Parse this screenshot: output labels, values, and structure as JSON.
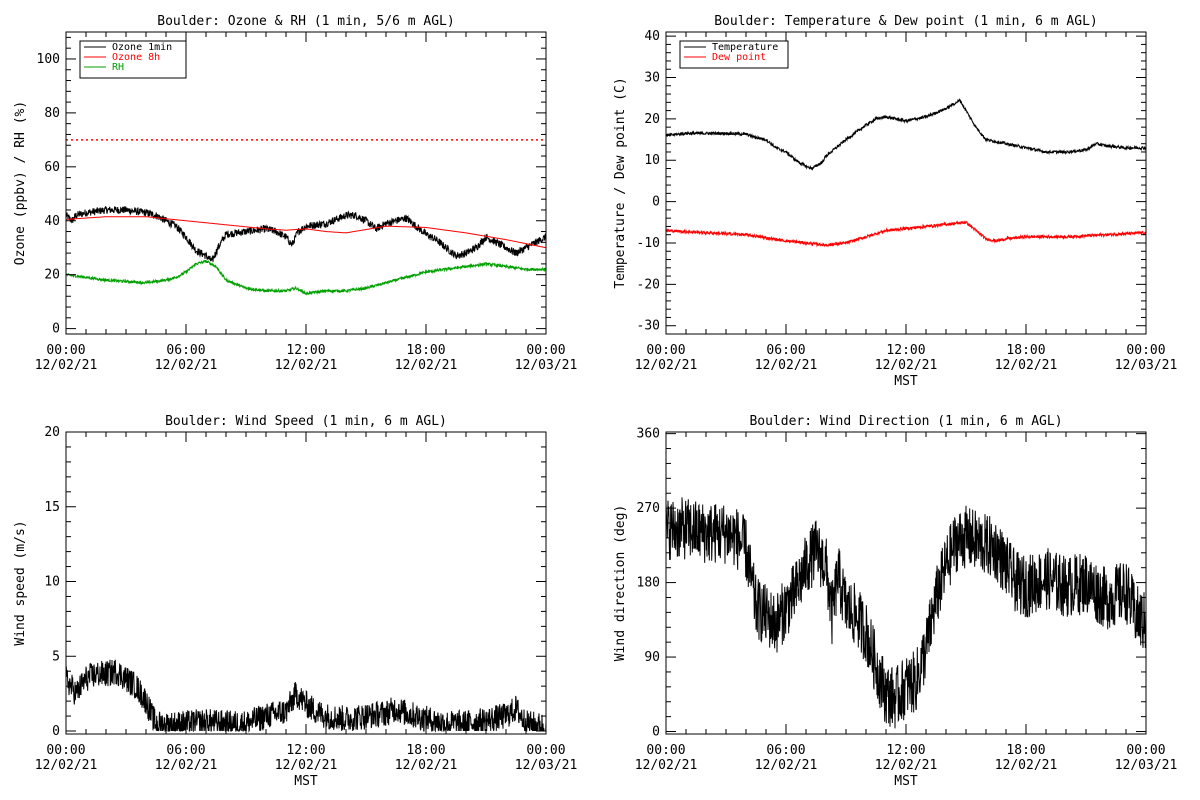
{
  "chart_data": [
    {
      "type": "line",
      "title": "Boulder: Ozone & RH (1 min, 5/6 m AGL)",
      "xlabel": "",
      "ylabel": "Ozone (ppbv) / RH (%)",
      "xlim": [
        0,
        24
      ],
      "ylim": [
        -2,
        110
      ],
      "yticks": [
        0,
        20,
        40,
        60,
        80,
        100
      ],
      "xticks": [
        {
          "t": 0,
          "time": "00:00",
          "date": "12/02/21"
        },
        {
          "t": 6,
          "time": "06:00",
          "date": "12/02/21"
        },
        {
          "t": 12,
          "time": "12:00",
          "date": "12/02/21"
        },
        {
          "t": 18,
          "time": "18:00",
          "date": "12/02/21"
        },
        {
          "t": 24,
          "time": "00:00",
          "date": "12/03/21"
        }
      ],
      "legend_position": "top-left",
      "reference_line": {
        "y": 70,
        "color": "#ff0000",
        "style": "dotted"
      },
      "series": [
        {
          "name": "Ozone 1min",
          "color": "#000000",
          "noise": 1.4,
          "points": [
            [
              0,
              42
            ],
            [
              0.3,
              40
            ],
            [
              0.5,
              42
            ],
            [
              1,
              43
            ],
            [
              2,
              44
            ],
            [
              3,
              44
            ],
            [
              4,
              43
            ],
            [
              4.5,
              42
            ],
            [
              5,
              40
            ],
            [
              5.5,
              38
            ],
            [
              6,
              34
            ],
            [
              6.5,
              29
            ],
            [
              7,
              27
            ],
            [
              7.3,
              25
            ],
            [
              7.6,
              30
            ],
            [
              8,
              35
            ],
            [
              9,
              36
            ],
            [
              10,
              37
            ],
            [
              10.5,
              36
            ],
            [
              11,
              34
            ],
            [
              11.3,
              31
            ],
            [
              11.6,
              36
            ],
            [
              12,
              38
            ],
            [
              13,
              39
            ],
            [
              14,
              42
            ],
            [
              14.5,
              42
            ],
            [
              15,
              40
            ],
            [
              15.5,
              37
            ],
            [
              16,
              39
            ],
            [
              17,
              41
            ],
            [
              17.5,
              38
            ],
            [
              18,
              35
            ],
            [
              18.5,
              33
            ],
            [
              19,
              30
            ],
            [
              19.5,
              27
            ],
            [
              20,
              28
            ],
            [
              20.5,
              30
            ],
            [
              21,
              34
            ],
            [
              22,
              30
            ],
            [
              22.5,
              28
            ],
            [
              23,
              30
            ],
            [
              23.5,
              32
            ],
            [
              24,
              34
            ]
          ]
        },
        {
          "name": "Ozone 8h",
          "color": "#ff0000",
          "noise": 0,
          "points": [
            [
              0,
              40.5
            ],
            [
              2,
              41.5
            ],
            [
              4,
              41.5
            ],
            [
              6,
              40
            ],
            [
              8,
              38.5
            ],
            [
              10,
              37
            ],
            [
              11,
              36.5
            ],
            [
              12,
              37
            ],
            [
              13,
              36
            ],
            [
              14,
              35.5
            ],
            [
              16,
              38
            ],
            [
              18,
              37.5
            ],
            [
              20,
              35.5
            ],
            [
              22,
              33
            ],
            [
              24,
              30
            ]
          ]
        },
        {
          "name": "RH",
          "color": "#00a000",
          "noise": 0.5,
          "points": [
            [
              0,
              20
            ],
            [
              1,
              19
            ],
            [
              2,
              18
            ],
            [
              3,
              17.5
            ],
            [
              4,
              17
            ],
            [
              5,
              18
            ],
            [
              5.5,
              19
            ],
            [
              6,
              21
            ],
            [
              6.5,
              24
            ],
            [
              7,
              25
            ],
            [
              7.5,
              23
            ],
            [
              8,
              18
            ],
            [
              9,
              15
            ],
            [
              10,
              14
            ],
            [
              11,
              14
            ],
            [
              11.5,
              15
            ],
            [
              12,
              13
            ],
            [
              13,
              14
            ],
            [
              14,
              14
            ],
            [
              15,
              15
            ],
            [
              16,
              17
            ],
            [
              17,
              19
            ],
            [
              18,
              21
            ],
            [
              19,
              22
            ],
            [
              20,
              23
            ],
            [
              21,
              24
            ],
            [
              22,
              23
            ],
            [
              23,
              22
            ],
            [
              24,
              22
            ]
          ]
        }
      ]
    },
    {
      "type": "line",
      "title": "Boulder: Temperature & Dew point (1 min, 6 m AGL)",
      "xlabel": "MST",
      "ylabel": "Temperature / Dew point (C)",
      "xlim": [
        0,
        24
      ],
      "ylim": [
        -32,
        41
      ],
      "yticks": [
        -30,
        -20,
        -10,
        0,
        10,
        20,
        30,
        40
      ],
      "xticks": [
        {
          "t": 0,
          "time": "00:00",
          "date": "12/02/21"
        },
        {
          "t": 6,
          "time": "06:00",
          "date": "12/02/21"
        },
        {
          "t": 12,
          "time": "12:00",
          "date": "12/02/21"
        },
        {
          "t": 18,
          "time": "18:00",
          "date": "12/02/21"
        },
        {
          "t": 24,
          "time": "00:00",
          "date": "12/03/21"
        }
      ],
      "legend_position": "top-left",
      "series": [
        {
          "name": "Temperature",
          "color": "#000000",
          "noise": 0.35,
          "points": [
            [
              0,
              16
            ],
            [
              1,
              16.5
            ],
            [
              2,
              16.5
            ],
            [
              3,
              16.5
            ],
            [
              4,
              16.3
            ],
            [
              4.5,
              15.5
            ],
            [
              5,
              15
            ],
            [
              5.5,
              13
            ],
            [
              6,
              12
            ],
            [
              6.5,
              10
            ],
            [
              7,
              8.5
            ],
            [
              7.3,
              8
            ],
            [
              7.8,
              9.5
            ],
            [
              8,
              11
            ],
            [
              9,
              15
            ],
            [
              10,
              18.5
            ],
            [
              10.5,
              20
            ],
            [
              11,
              20.5
            ],
            [
              11.5,
              20
            ],
            [
              12,
              19.5
            ],
            [
              13,
              20.5
            ],
            [
              14,
              22.5
            ],
            [
              14.7,
              24.5
            ],
            [
              15,
              22
            ],
            [
              15.5,
              18
            ],
            [
              16,
              15
            ],
            [
              17,
              14
            ],
            [
              18,
              13
            ],
            [
              19,
              12
            ],
            [
              20,
              12
            ],
            [
              21,
              12.5
            ],
            [
              21.5,
              14
            ],
            [
              22,
              13.5
            ],
            [
              23,
              13
            ],
            [
              24,
              13
            ]
          ]
        },
        {
          "name": "Dew point",
          "color": "#ff0000",
          "noise": 0.35,
          "points": [
            [
              0,
              -7
            ],
            [
              2,
              -7.5
            ],
            [
              4,
              -8
            ],
            [
              6,
              -9.5
            ],
            [
              7,
              -10
            ],
            [
              8,
              -10.5
            ],
            [
              9,
              -10
            ],
            [
              10,
              -8.5
            ],
            [
              11,
              -7
            ],
            [
              12,
              -6.5
            ],
            [
              13,
              -6
            ],
            [
              14,
              -5.5
            ],
            [
              15,
              -5
            ],
            [
              15.5,
              -7
            ],
            [
              16,
              -9
            ],
            [
              16.5,
              -9.5
            ],
            [
              17,
              -9
            ],
            [
              18,
              -8.5
            ],
            [
              20,
              -8.5
            ],
            [
              22,
              -8
            ],
            [
              24,
              -7.5
            ]
          ]
        }
      ]
    },
    {
      "type": "line",
      "title": "Boulder: Wind Speed (1 min, 6 m AGL)",
      "xlabel": "MST",
      "ylabel": "Wind speed (m/s)",
      "xlim": [
        0,
        24
      ],
      "ylim": [
        -0.2,
        20
      ],
      "yticks": [
        0,
        5,
        10,
        15,
        20
      ],
      "xticks": [
        {
          "t": 0,
          "time": "00:00",
          "date": "12/02/21"
        },
        {
          "t": 6,
          "time": "06:00",
          "date": "12/02/21"
        },
        {
          "t": 12,
          "time": "12:00",
          "date": "12/02/21"
        },
        {
          "t": 18,
          "time": "18:00",
          "date": "12/02/21"
        },
        {
          "t": 24,
          "time": "00:00",
          "date": "12/03/21"
        }
      ],
      "series": [
        {
          "name": "",
          "color": "#000000",
          "noise": 0.9,
          "min": 0,
          "points": [
            [
              0,
              3.5
            ],
            [
              0.5,
              2.5
            ],
            [
              1,
              3.5
            ],
            [
              1.5,
              3.8
            ],
            [
              2,
              3.8
            ],
            [
              2.5,
              4
            ],
            [
              3,
              3.5
            ],
            [
              3.5,
              3
            ],
            [
              4,
              2
            ],
            [
              4.3,
              1
            ],
            [
              4.5,
              0.5
            ],
            [
              5,
              0.4
            ],
            [
              6,
              0.5
            ],
            [
              7,
              0.6
            ],
            [
              8,
              0.5
            ],
            [
              9,
              0.5
            ],
            [
              10,
              1
            ],
            [
              11,
              1.3
            ],
            [
              11.5,
              2.5
            ],
            [
              12,
              1.8
            ],
            [
              12.5,
              1.3
            ],
            [
              13,
              1
            ],
            [
              14,
              0.8
            ],
            [
              15,
              1
            ],
            [
              16,
              1.2
            ],
            [
              16.5,
              1.5
            ],
            [
              17,
              1.2
            ],
            [
              18,
              0.8
            ],
            [
              19,
              0.5
            ],
            [
              20,
              0.5
            ],
            [
              21,
              0.7
            ],
            [
              22,
              1
            ],
            [
              22.5,
              1.5
            ],
            [
              23,
              0.5
            ],
            [
              24,
              0.3
            ]
          ]
        }
      ]
    },
    {
      "type": "line",
      "title": "Boulder: Wind Direction (1 min, 6 m AGL)",
      "xlabel": "MST",
      "ylabel": "Wind direction (deg)",
      "xlim": [
        0,
        24
      ],
      "ylim": [
        -3,
        362
      ],
      "yticks": [
        0,
        90,
        180,
        270,
        360
      ],
      "xticks": [
        {
          "t": 0,
          "time": "00:00",
          "date": "12/02/21"
        },
        {
          "t": 6,
          "time": "06:00",
          "date": "12/02/21"
        },
        {
          "t": 12,
          "time": "12:00",
          "date": "12/02/21"
        },
        {
          "t": 18,
          "time": "18:00",
          "date": "12/02/21"
        },
        {
          "t": 24,
          "time": "00:00",
          "date": "12/03/21"
        }
      ],
      "series": [
        {
          "name": "",
          "color": "#000000",
          "noise": 38,
          "min": 0,
          "max": 360,
          "points": [
            [
              0,
              245
            ],
            [
              1,
              245
            ],
            [
              2,
              240
            ],
            [
              3,
              240
            ],
            [
              3.5,
              235
            ],
            [
              4,
              220
            ],
            [
              4.5,
              150
            ],
            [
              5,
              140
            ],
            [
              5.5,
              130
            ],
            [
              6,
              150
            ],
            [
              6.5,
              170
            ],
            [
              7,
              200
            ],
            [
              7.5,
              220
            ],
            [
              8,
              200
            ],
            [
              8.3,
              140
            ],
            [
              8.6,
              190
            ],
            [
              9,
              150
            ],
            [
              9.5,
              140
            ],
            [
              10,
              120
            ],
            [
              10.5,
              80
            ],
            [
              11,
              45
            ],
            [
              11.5,
              40
            ],
            [
              12,
              55
            ],
            [
              12.5,
              60
            ],
            [
              13,
              100
            ],
            [
              13.5,
              160
            ],
            [
              14,
              200
            ],
            [
              14.5,
              230
            ],
            [
              15,
              235
            ],
            [
              16,
              225
            ],
            [
              16.5,
              220
            ],
            [
              17,
              200
            ],
            [
              17.5,
              180
            ],
            [
              18,
              175
            ],
            [
              19,
              185
            ],
            [
              20,
              175
            ],
            [
              21,
              180
            ],
            [
              22,
              160
            ],
            [
              23,
              170
            ],
            [
              23.5,
              140
            ],
            [
              24,
              130
            ]
          ]
        }
      ]
    }
  ]
}
